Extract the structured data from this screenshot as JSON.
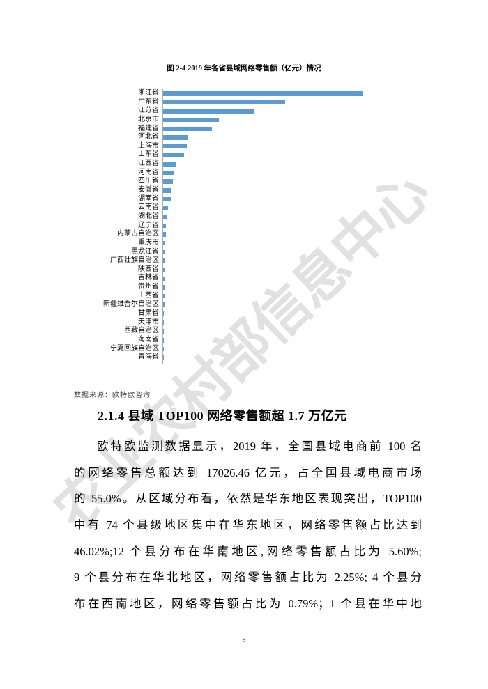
{
  "page": {
    "number": "8"
  },
  "watermark": {
    "text": "农业农村部信息中心",
    "color": "#e1e1e1"
  },
  "figure": {
    "title": "图 2-4 2019 年各省县域网络零售额（亿元）情况",
    "source": "数据来源：欧特欧咨询"
  },
  "chart_data": {
    "type": "bar",
    "orientation": "horizontal",
    "title": "图 2-4 2019 年各省县域网络零售额（亿元）情况",
    "categories": [
      "浙江省",
      "广东省",
      "江苏省",
      "北京市",
      "福建省",
      "河北省",
      "上海市",
      "山东省",
      "江西省",
      "河南省",
      "四川省",
      "安徽省",
      "湖南省",
      "云南省",
      "湖北省",
      "辽宁省",
      "内蒙古自治区",
      "重庆市",
      "黑龙江省",
      "广西壮族自治区",
      "陕西省",
      "吉林省",
      "贵州省",
      "山西省",
      "新疆维吾尔自治区",
      "甘肃省",
      "天津市",
      "西藏自治区",
      "海南省",
      "宁夏回族自治区",
      "青海省"
    ],
    "values": [
      100,
      61,
      45.3,
      28,
      24.4,
      12.6,
      11.8,
      10.5,
      6.4,
      5.3,
      5.0,
      3.9,
      4.1,
      2.4,
      2.2,
      1.3,
      1.3,
      1.1,
      1.0,
      0.8,
      0.8,
      0.8,
      0.7,
      0.6,
      0.6,
      0.4,
      0.35,
      0.3,
      0.2,
      0.1,
      0.07
    ],
    "value_units": "亿元 (no numeric axis labels visible; values are relative bar lengths with longest bar 浙江省 = 100)",
    "xlabel": "",
    "ylabel": "",
    "axis_ticks_visible": false,
    "grid": false,
    "legend": "none",
    "bar_color": "#5B9BD5",
    "axis_color": "#ABABAB"
  },
  "section": {
    "heading": "2.1.4 县域 TOP100 网络零售额超 1.7 万亿元",
    "paragraph_lines": [
      "欧特欧监测数据显示，2019 年，全国县域电商前 100 名",
      "的网络零售总额达到 17026.46 亿元，占全国县域电商市场",
      "的 55.0%。从区域分布看，依然是华东地区表现突出，TOP100",
      "中有 74 个县级地区集中在华东地区，网络零售额占比达到",
      "46.02%;12 个县分布在华南地区,网络零售额占比为 5.60%;",
      "9 个县分布在华北地区，网络零售额占比为 2.25%; 4 个县分",
      "布在西南地区，网络零售额占比为 0.79%；1 个县在华中地"
    ]
  }
}
